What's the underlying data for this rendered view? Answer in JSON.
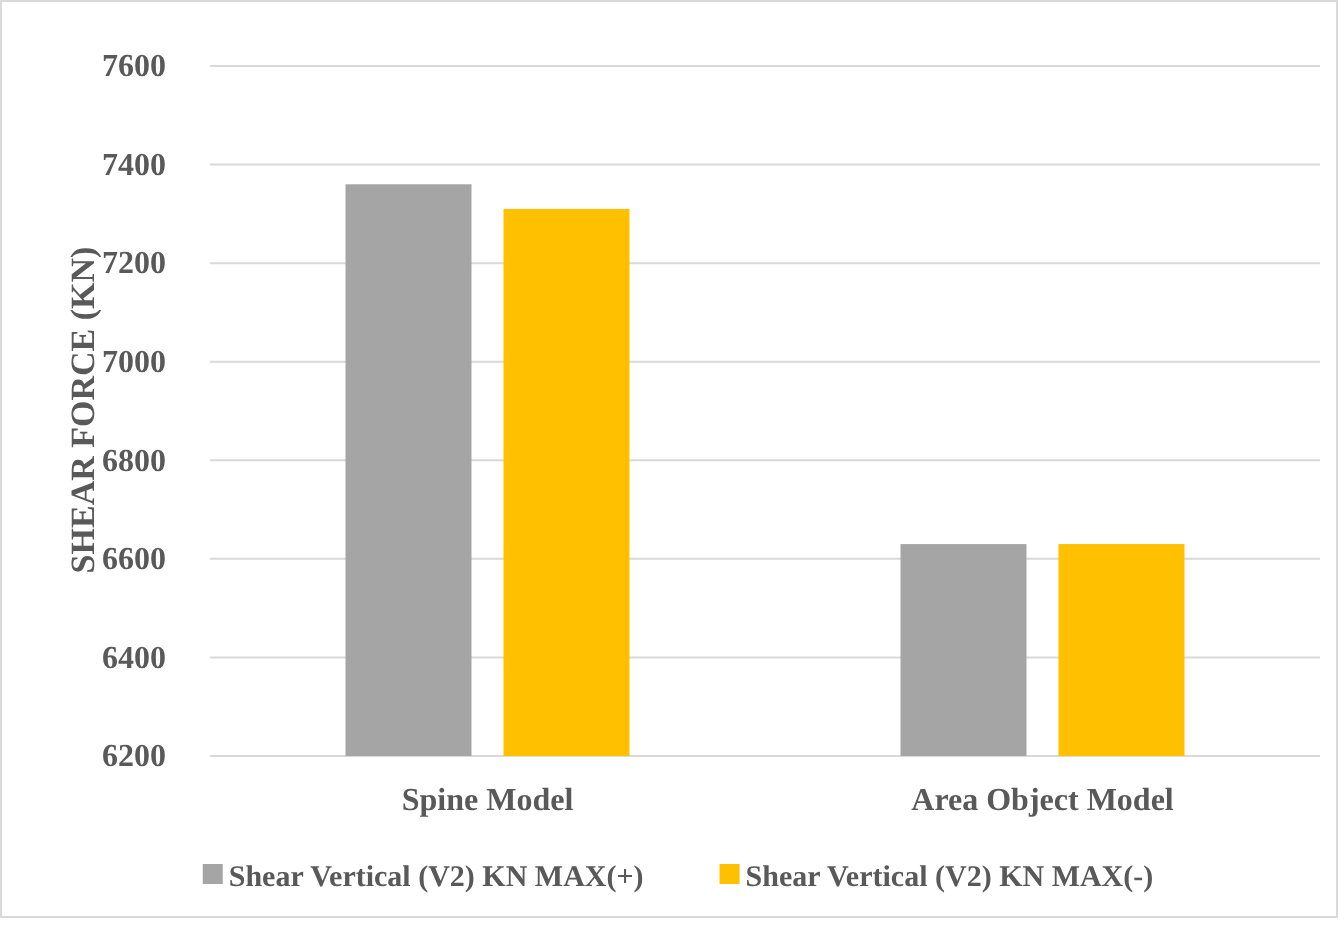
{
  "chart_data": {
    "type": "bar",
    "ylabel": "SHEAR FORCE (KN)",
    "categories": [
      "Spine Model",
      "Area Object Model"
    ],
    "series": [
      {
        "name": "Shear Vertical (V2) KN MAX(+)",
        "color": "#a5a5a5",
        "values": [
          7360,
          6630
        ]
      },
      {
        "name": "Shear Vertical (V2) KN MAX(-)",
        "color": "#ffc000",
        "values": [
          7310,
          6630
        ]
      }
    ],
    "ylim": [
      6200,
      7600
    ],
    "yticks": [
      6200,
      6400,
      6600,
      6800,
      7000,
      7200,
      7400,
      7600
    ],
    "grid": "y",
    "legend": "bottom"
  }
}
